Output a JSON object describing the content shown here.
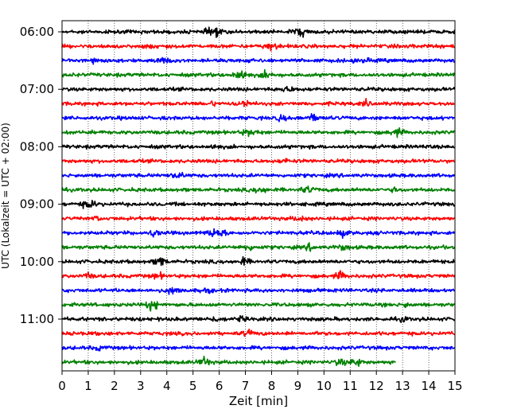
{
  "chart_data": {
    "type": "line",
    "chart_kind": "helicorder seismogram",
    "xlabel": "Zeit  [min]",
    "ylabel": "UTC (Lokalzeit = UTC + 02:00)",
    "xlim": [
      0,
      15
    ],
    "x_ticks": [
      "0",
      "1",
      "2",
      "3",
      "4",
      "5",
      "6",
      "7",
      "8",
      "9",
      "10",
      "11",
      "12",
      "13",
      "14",
      "15"
    ],
    "y_tick_labels": [
      "06:00",
      "07:00",
      "08:00",
      "09:00",
      "10:00",
      "11:00"
    ],
    "trace_count": 24,
    "trace_colors": [
      "#000000",
      "#ff0000",
      "#0000ff",
      "#008000"
    ],
    "last_trace_end_min": 12.75,
    "vertical_grid": "dotted",
    "event_markers_min": [
      1.2,
      3.6,
      4.1,
      5.7,
      6.9,
      7.7,
      8.3,
      9.3,
      10.7,
      11.4,
      13.0
    ]
  }
}
